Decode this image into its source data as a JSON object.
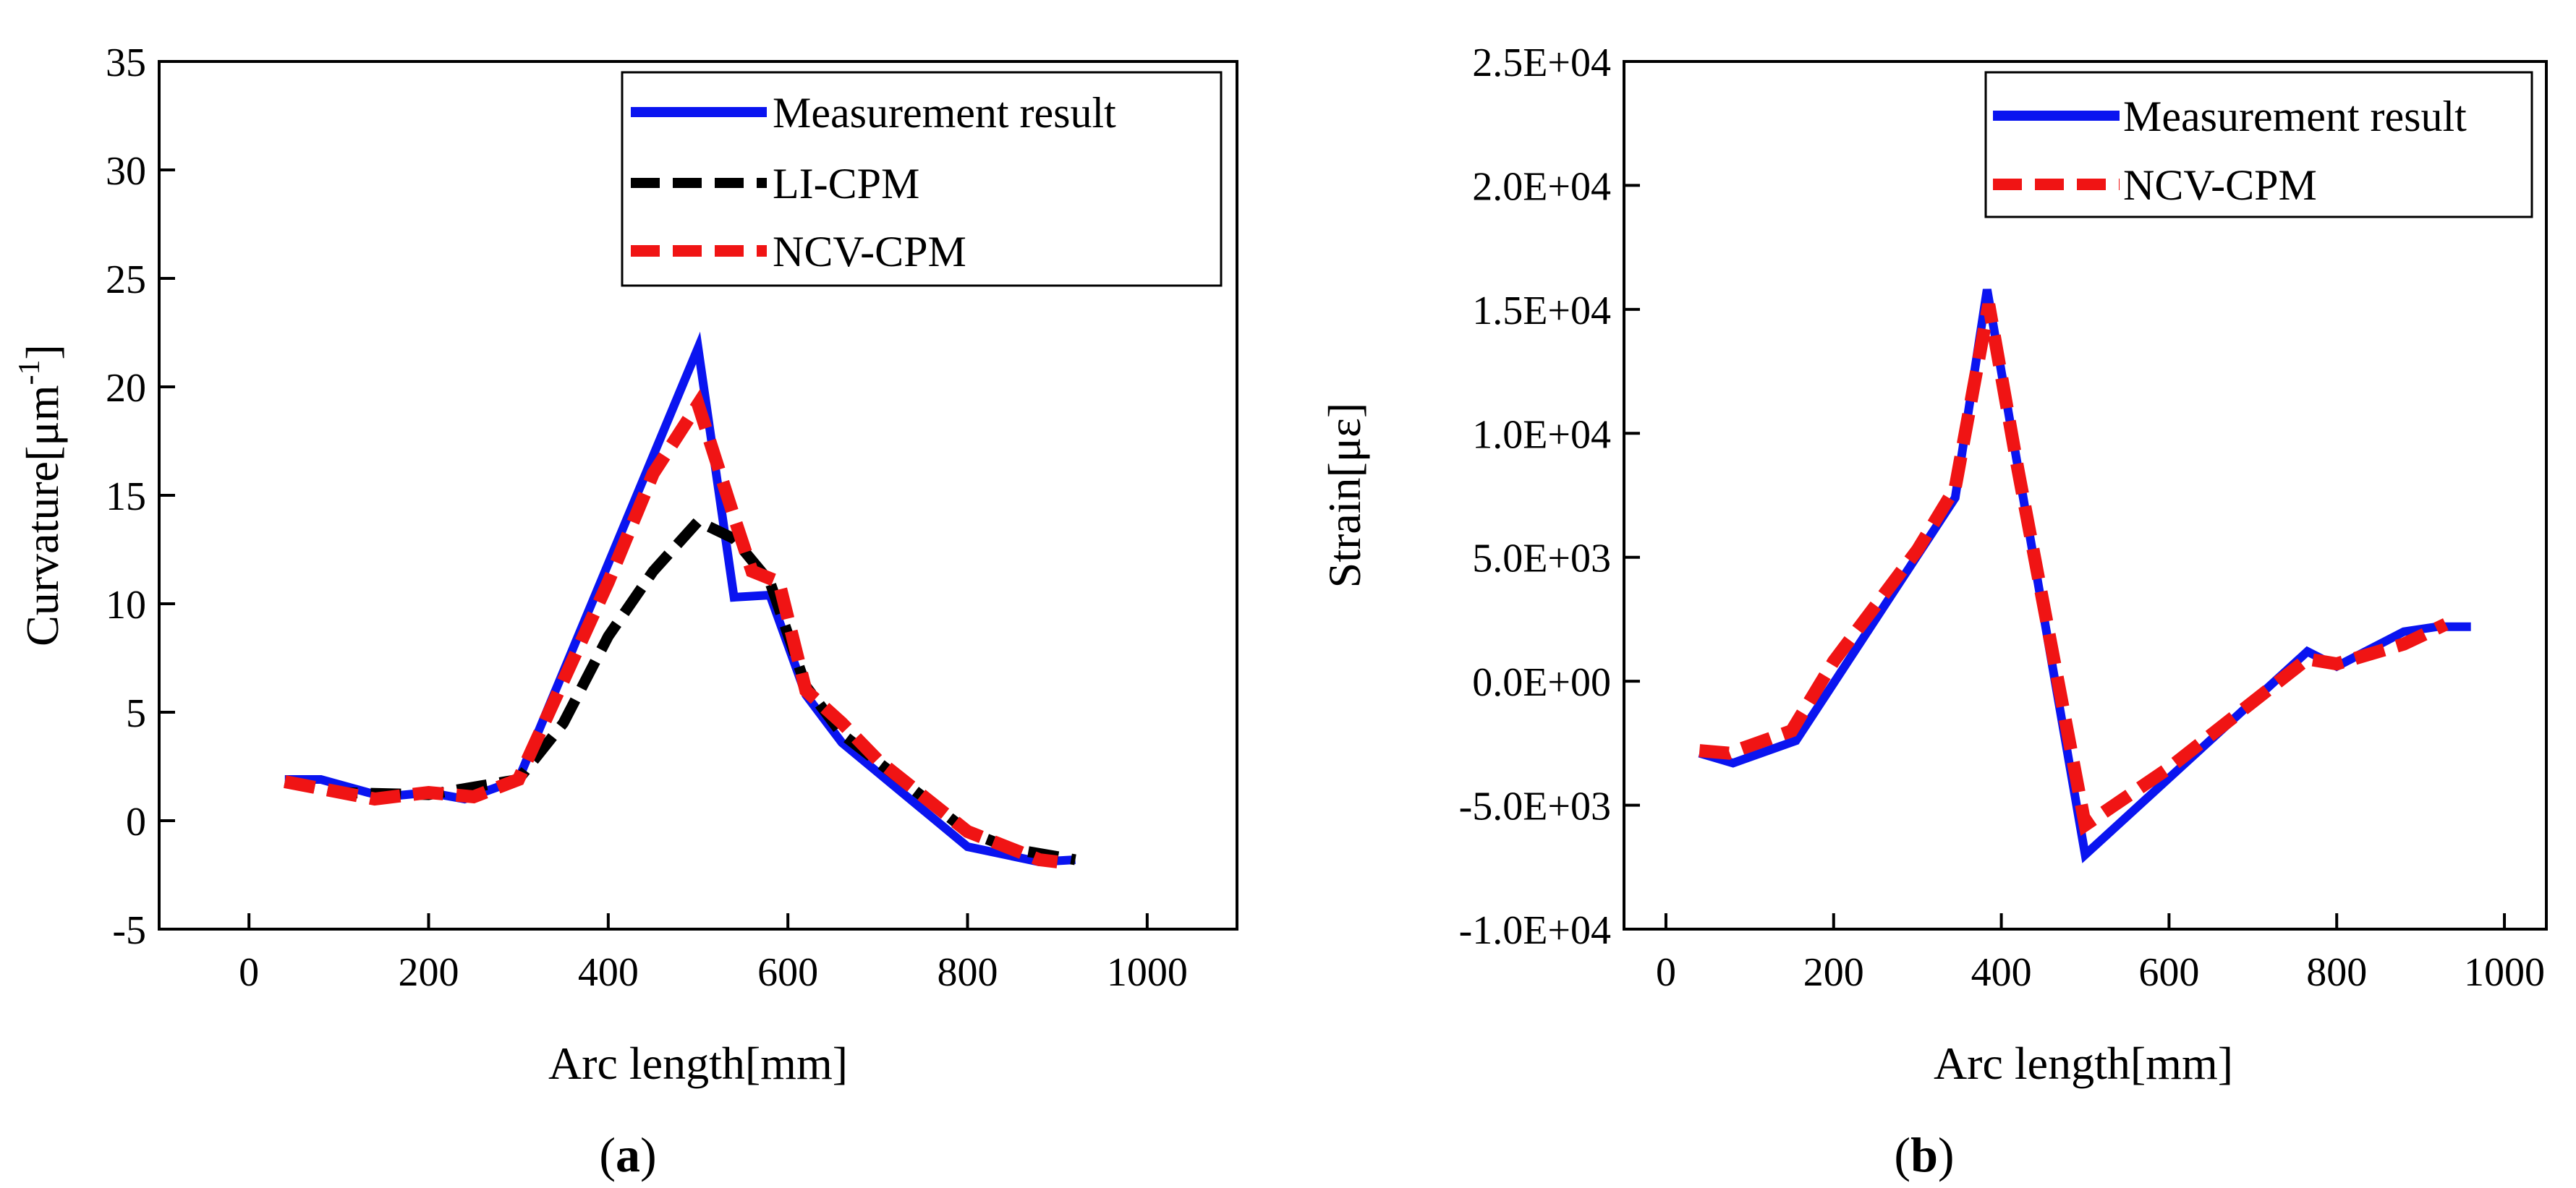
{
  "figure": {
    "panels": [
      "(a)",
      "(b)"
    ]
  },
  "colors": {
    "measurement": "#0a14f0",
    "li_cpm": "#000000",
    "ncv_cpm": "#f01414"
  },
  "chart_data": [
    {
      "type": "line",
      "panel_label": "(a)",
      "panel_letter": "a",
      "title": "",
      "xlabel": "Arc length[mm]",
      "ylabel_prefix": "Curvature[μm",
      "ylabel_sup": "-1",
      "ylabel_suffix": "]",
      "xlim": [
        -100,
        1100
      ],
      "ylim": [
        -5,
        35
      ],
      "xticks": [
        0,
        200,
        400,
        600,
        800,
        1000
      ],
      "yticks": [
        -5,
        0,
        5,
        10,
        15,
        20,
        25,
        30,
        35
      ],
      "xtick_labels": [
        "0",
        "200",
        "400",
        "600",
        "800",
        "1000"
      ],
      "ytick_labels": [
        "-5",
        "0",
        "5",
        "10",
        "15",
        "20",
        "25",
        "30",
        "35"
      ],
      "grid": false,
      "legend_position": "top-right",
      "series": [
        {
          "name": "Measurement result",
          "style": "solid",
          "color": "#0a14f0",
          "points": [
            [
              40,
              1.9
            ],
            [
              80,
              1.9
            ],
            [
              150,
              1.1
            ],
            [
              200,
              1.3
            ],
            [
              240,
              1.0
            ],
            [
              300,
              1.9
            ],
            [
              500,
              21.8
            ],
            [
              540,
              10.3
            ],
            [
              580,
              10.4
            ],
            [
              620,
              5.8
            ],
            [
              660,
              3.6
            ],
            [
              800,
              -1.2
            ],
            [
              880,
              -1.9
            ],
            [
              920,
              -1.8
            ]
          ]
        },
        {
          "name": "LI-CPM",
          "style": "dashed",
          "color": "#000000",
          "points": [
            [
              40,
              1.8
            ],
            [
              100,
              1.3
            ],
            [
              200,
              1.2
            ],
            [
              300,
              1.9
            ],
            [
              350,
              4.5
            ],
            [
              400,
              8.5
            ],
            [
              450,
              11.5
            ],
            [
              500,
              13.8
            ],
            [
              540,
              13.0
            ],
            [
              580,
              11.0
            ],
            [
              620,
              6.2
            ],
            [
              660,
              4.0
            ],
            [
              800,
              -0.5
            ],
            [
              850,
              -1.3
            ],
            [
              920,
              -1.8
            ]
          ]
        },
        {
          "name": "NCV-CPM",
          "style": "dashed",
          "color": "#f01414",
          "points": [
            [
              40,
              1.8
            ],
            [
              140,
              1.0
            ],
            [
              200,
              1.3
            ],
            [
              250,
              1.1
            ],
            [
              300,
              1.9
            ],
            [
              400,
              11.0
            ],
            [
              450,
              16.0
            ],
            [
              500,
              19.2
            ],
            [
              540,
              14.0
            ],
            [
              560,
              11.5
            ],
            [
              590,
              11.0
            ],
            [
              620,
              6.0
            ],
            [
              660,
              4.5
            ],
            [
              700,
              2.8
            ],
            [
              800,
              -0.5
            ],
            [
              880,
              -1.8
            ],
            [
              900,
              -1.9
            ]
          ]
        }
      ]
    },
    {
      "type": "line",
      "panel_label": "(b)",
      "panel_letter": "b",
      "title": "",
      "xlabel": "Arc length[mm]",
      "ylabel": "Strain[με]",
      "xlim": [
        -50,
        1050
      ],
      "ylim": [
        -10000,
        25000
      ],
      "xticks": [
        0,
        200,
        400,
        600,
        800,
        1000
      ],
      "yticks": [
        -10000,
        -5000,
        0,
        5000,
        10000,
        15000,
        20000,
        25000
      ],
      "xtick_labels": [
        "0",
        "200",
        "400",
        "600",
        "800",
        "1000"
      ],
      "ytick_labels": [
        "-1.0E+04",
        "-5.0E+03",
        "0.0E+00",
        "5.0E+03",
        "1.0E+04",
        "1.5E+04",
        "2.0E+04",
        "2.5E+04"
      ],
      "grid": false,
      "legend_position": "top-right",
      "series": [
        {
          "name": "Measurement result",
          "style": "solid",
          "color": "#0a14f0",
          "points": [
            [
              40,
              -2900
            ],
            [
              80,
              -3300
            ],
            [
              155,
              -2400
            ],
            [
              345,
              7400
            ],
            [
              383,
              15800
            ],
            [
              500,
              -7000
            ],
            [
              765,
              1200
            ],
            [
              800,
              600
            ],
            [
              880,
              2000
            ],
            [
              920,
              2200
            ],
            [
              960,
              2200
            ]
          ]
        },
        {
          "name": "NCV-CPM",
          "style": "dashed",
          "color": "#f01414",
          "points": [
            [
              40,
              -2800
            ],
            [
              75,
              -2900
            ],
            [
              150,
              -2000
            ],
            [
              200,
              800
            ],
            [
              300,
              5300
            ],
            [
              345,
              7800
            ],
            [
              385,
              15200
            ],
            [
              420,
              8500
            ],
            [
              500,
              -5800
            ],
            [
              600,
              -3500
            ],
            [
              765,
              900
            ],
            [
              800,
              700
            ],
            [
              880,
              1500
            ],
            [
              930,
              2300
            ]
          ]
        }
      ]
    }
  ]
}
